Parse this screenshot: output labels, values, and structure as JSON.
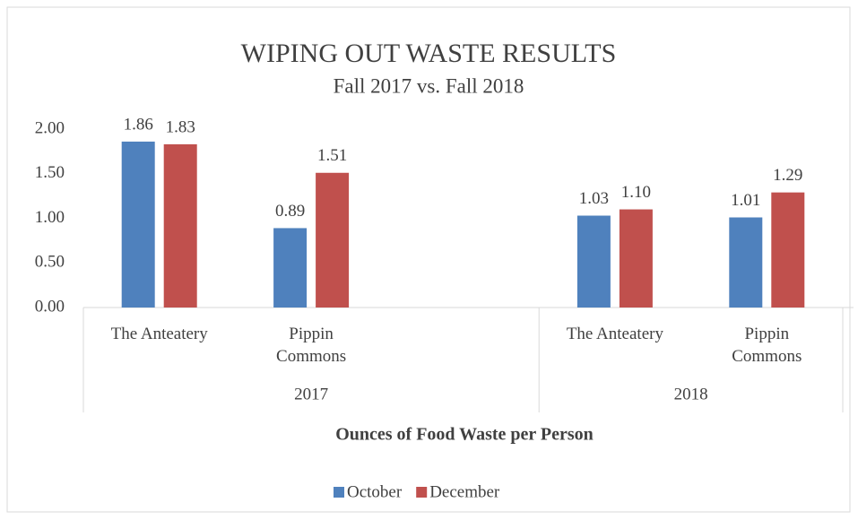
{
  "chart_data": {
    "type": "bar",
    "title": "WIPING OUT WASTE RESULTS",
    "subtitle": "Fall 2017 vs. Fall 2018",
    "x_label": "Ounces of Food Waste per Person",
    "category_groups": [
      {
        "name": "2017",
        "categories": [
          "The Anteatery",
          "Pippin Commons",
          null
        ]
      },
      {
        "name": "2018",
        "categories": [
          "The Anteatery",
          "Pippin Commons"
        ]
      }
    ],
    "series": [
      {
        "name": "October",
        "color": "#4f81bd",
        "values": [
          1.86,
          0.89,
          null,
          1.03,
          1.01
        ],
        "value_labels": [
          "1.86",
          "0.89",
          null,
          "1.03",
          "1.01"
        ]
      },
      {
        "name": "December",
        "color": "#c0504d",
        "values": [
          1.83,
          1.51,
          null,
          1.1,
          1.29
        ],
        "value_labels": [
          "1.83",
          "1.51",
          null,
          "1.10",
          "1.29"
        ]
      }
    ],
    "ylim": [
      0,
      2
    ],
    "yticks": [
      {
        "value": 0,
        "label": "0.00"
      },
      {
        "value": 0.5,
        "label": "0.50"
      },
      {
        "value": 1,
        "label": "1.00"
      },
      {
        "value": 1.5,
        "label": "1.50"
      },
      {
        "value": 2,
        "label": "2.00"
      }
    ],
    "legend": "bottom"
  }
}
